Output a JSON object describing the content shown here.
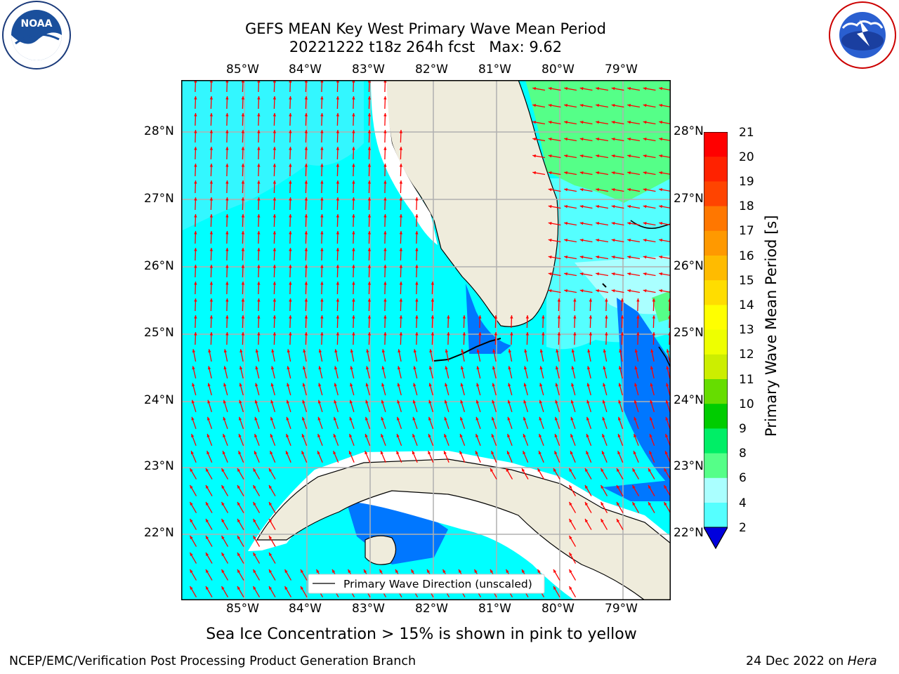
{
  "title_line1": "GEFS MEAN Key West Primary Wave Mean Period",
  "title_line2": "20221222 t18z 264h fcst   Max: 9.62",
  "lon_labels": [
    "85°W",
    "84°W",
    "83°W",
    "82°W",
    "81°W",
    "80°W",
    "79°W"
  ],
  "lat_labels": [
    "28°N",
    "27°N",
    "26°N",
    "25°N",
    "24°N",
    "23°N",
    "22°N"
  ],
  "colorbar": {
    "label": "Primary Wave Mean Period [s]",
    "ticks": [
      "21",
      "20",
      "19",
      "18",
      "17",
      "16",
      "15",
      "14",
      "13",
      "12",
      "11",
      "10",
      "9",
      "8",
      "6",
      "4",
      "2"
    ],
    "colors": [
      "#ff0000",
      "#ff2200",
      "#ff4400",
      "#ff7700",
      "#ff9900",
      "#ffbb00",
      "#ffdd00",
      "#ffff00",
      "#eeff00",
      "#ccee00",
      "#66dd00",
      "#00cc00",
      "#00ee66",
      "#55ff88",
      "#aaffff",
      "#55ffff",
      "#00ffff",
      "#0077ff"
    ],
    "under_color": "#0000dd"
  },
  "legend_label": "Primary Wave Direction (unscaled)",
  "caption": "Sea Ice Concentration > 15% is shown in pink to yellow",
  "footer_left": "NCEP/EMC/Verification Post Processing Product Generation Branch",
  "footer_date": "24 Dec 2022 on ",
  "footer_host": "Hera",
  "logo_left": {
    "name": "NOAA",
    "ring_text": "NATIONAL OCEANIC AND ATMOSPHERIC ADMINISTRATION"
  },
  "logo_right": {
    "ring_text": "NATIONAL WEATHER SERVICE"
  },
  "colors": {
    "land": "#efecdc",
    "coast": "#000000",
    "grid": "#b0b0b0",
    "arrow": "#ff0000",
    "shallow": "#00ffff",
    "light": "#55ffff",
    "green": "#55ff88",
    "blue": "#0077ff"
  }
}
